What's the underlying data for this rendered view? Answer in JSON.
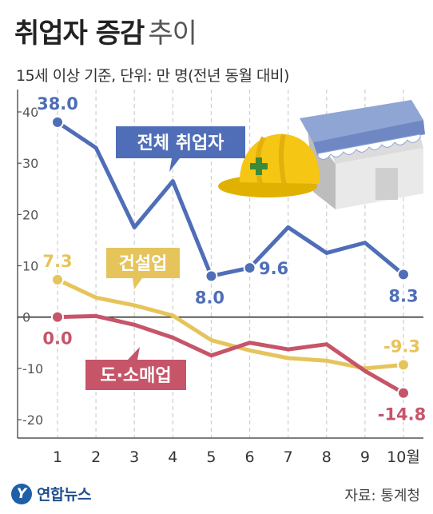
{
  "header": {
    "title_main": "취업자 증감",
    "title_sub": "추이",
    "subtitle": "15세 이상 기준, 단위: 만 명(전년 동월 대비)"
  },
  "footer": {
    "logo_text": "연합뉴스",
    "source": "자료: 통계청"
  },
  "colors": {
    "total": "#4f6eb7",
    "construction": "#e6c45c",
    "retail": "#c65569",
    "axis": "#333333",
    "grid": "#cfcfcf",
    "tick": "#555555"
  },
  "chart_data": {
    "type": "line",
    "x": [
      "1",
      "2",
      "3",
      "4",
      "5",
      "6",
      "7",
      "8",
      "9",
      "10월"
    ],
    "ylim": [
      -20,
      40
    ],
    "yticks": [
      -20,
      -10,
      0,
      10,
      20,
      30,
      40
    ],
    "grid": "vertical-dashed",
    "series": [
      {
        "name": "전체 취업자",
        "key": "total",
        "values": [
          38.0,
          33.0,
          17.5,
          26.5,
          8.0,
          9.6,
          17.5,
          12.5,
          14.5,
          8.3
        ],
        "point_labels": [
          {
            "index": 0,
            "text": "38.0"
          },
          {
            "index": 4,
            "text": "8.0"
          },
          {
            "index": 5,
            "text": "9.6"
          },
          {
            "index": 9,
            "text": "8.3"
          }
        ]
      },
      {
        "name": "건설업",
        "key": "construction",
        "values": [
          7.3,
          3.8,
          2.3,
          0.3,
          -4.5,
          -6.5,
          -8.0,
          -8.5,
          -10.0,
          -9.3
        ],
        "point_labels": [
          {
            "index": 0,
            "text": "7.3"
          },
          {
            "index": 9,
            "text": "-9.3"
          }
        ]
      },
      {
        "name": "도·소매업",
        "key": "retail",
        "values": [
          0.0,
          0.2,
          -1.5,
          -4.0,
          -7.5,
          -5.0,
          -6.3,
          -5.3,
          -10.5,
          -14.8
        ],
        "point_labels": [
          {
            "index": 0,
            "text": "0.0"
          },
          {
            "index": 9,
            "text": "-14.8"
          }
        ]
      }
    ]
  }
}
